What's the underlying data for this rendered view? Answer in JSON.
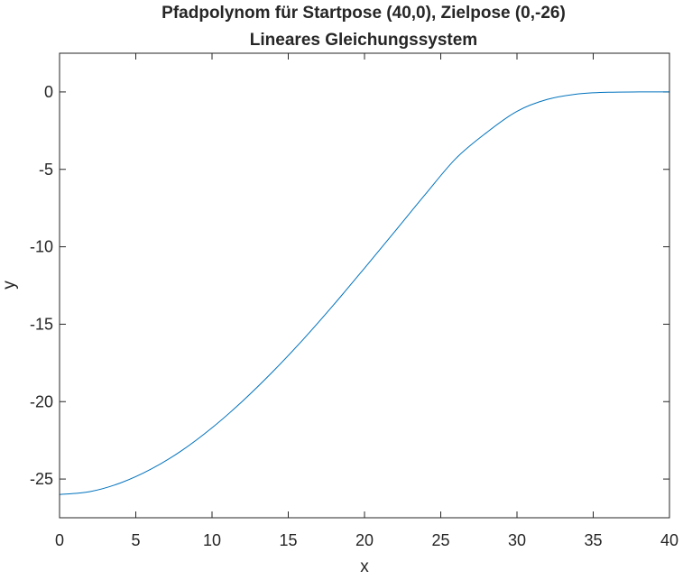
{
  "chart_data": {
    "type": "line",
    "title": "Pfadpolynom für Startpose (40,0), Zielpose (0,-26)",
    "subtitle": "Lineares Gleichungssystem",
    "xlabel": "x",
    "ylabel": "y",
    "xlim": [
      0,
      40
    ],
    "ylim": [
      -27.5,
      2.5
    ],
    "xticks": [
      0,
      5,
      10,
      15,
      20,
      25,
      30,
      35,
      40
    ],
    "yticks": [
      0,
      -5,
      -10,
      -15,
      -20,
      -25
    ],
    "xtick_labels": [
      "0",
      "5",
      "10",
      "15",
      "20",
      "25",
      "30",
      "35",
      "40"
    ],
    "ytick_labels": [
      "0",
      "-5",
      "-10",
      "-15",
      "-20",
      "-25"
    ],
    "grid": false,
    "series": [
      {
        "color": "#0072BD",
        "x": [
          0,
          2,
          4,
          6,
          8,
          10,
          12,
          14,
          16,
          18,
          20,
          22,
          24,
          26,
          28,
          30,
          32,
          34,
          36,
          38,
          40
        ],
        "y": [
          -26.0,
          -25.81,
          -25.25,
          -24.36,
          -23.17,
          -21.69,
          -19.97,
          -18.05,
          -15.96,
          -13.72,
          -11.38,
          -9.0,
          -6.6,
          -4.29,
          -2.63,
          -1.25,
          -0.48,
          -0.13,
          -0.02,
          0.0,
          0.0
        ]
      }
    ]
  }
}
